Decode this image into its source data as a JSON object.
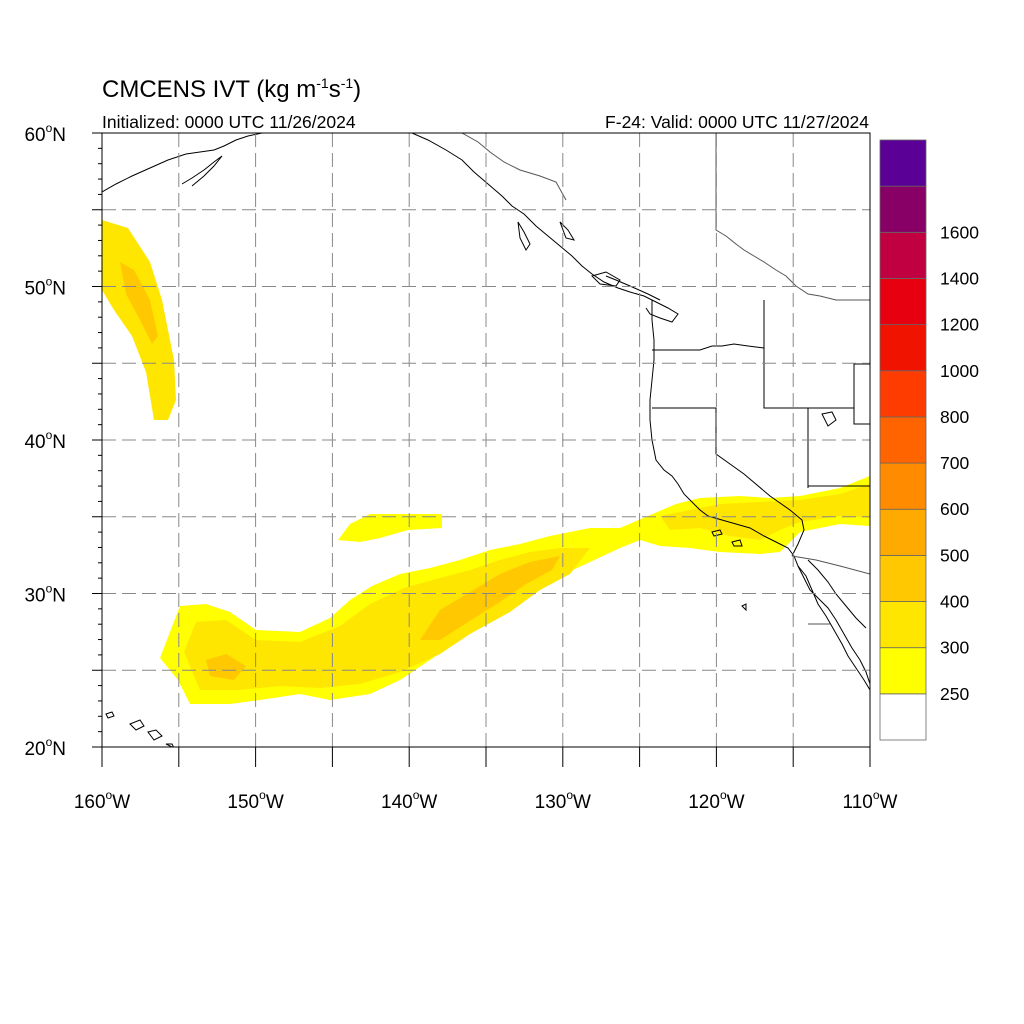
{
  "header": {
    "title_prefix": "CMCENS IVT (kg m",
    "title_exp1": "-1",
    "title_mid": "s",
    "title_exp2": "-1",
    "title_suffix": ")",
    "initialized": "Initialized: 0000 UTC 11/26/2024",
    "valid": "F-24: Valid: 0000 UTC 11/27/2024"
  },
  "map": {
    "lon_range": [
      -160,
      -110
    ],
    "lat_range": [
      20,
      60
    ],
    "grid": "dashed",
    "lat_labels": [
      {
        "value": 20,
        "deg": "20",
        "hemi": "N"
      },
      {
        "value": 30,
        "deg": "30",
        "hemi": "N"
      },
      {
        "value": 40,
        "deg": "40",
        "hemi": "N"
      },
      {
        "value": 50,
        "deg": "50",
        "hemi": "N"
      },
      {
        "value": 60,
        "deg": "60",
        "hemi": "N"
      }
    ],
    "lon_labels": [
      {
        "value": -160,
        "deg": "160",
        "hemi": "W"
      },
      {
        "value": -150,
        "deg": "150",
        "hemi": "W"
      },
      {
        "value": -140,
        "deg": "140",
        "hemi": "W"
      },
      {
        "value": -130,
        "deg": "130",
        "hemi": "W"
      },
      {
        "value": -120,
        "deg": "120",
        "hemi": "W"
      },
      {
        "value": -110,
        "deg": "110",
        "hemi": "W"
      }
    ]
  },
  "colorbar": {
    "levels": [
      {
        "label": "",
        "color": "#ffffff"
      },
      {
        "label": "250",
        "color": "#ffff00"
      },
      {
        "label": "300",
        "color": "#ffe600"
      },
      {
        "label": "400",
        "color": "#ffc800"
      },
      {
        "label": "500",
        "color": "#ffaa00"
      },
      {
        "label": "600",
        "color": "#ff8c00"
      },
      {
        "label": "700",
        "color": "#ff6400"
      },
      {
        "label": "800",
        "color": "#ff3c00"
      },
      {
        "label": "1000",
        "color": "#f01400"
      },
      {
        "label": "1200",
        "color": "#e60010"
      },
      {
        "label": "1400",
        "color": "#c00040"
      },
      {
        "label": "1600",
        "color": "#880066"
      },
      {
        "label": "",
        "color": "#5a0096"
      }
    ]
  }
}
